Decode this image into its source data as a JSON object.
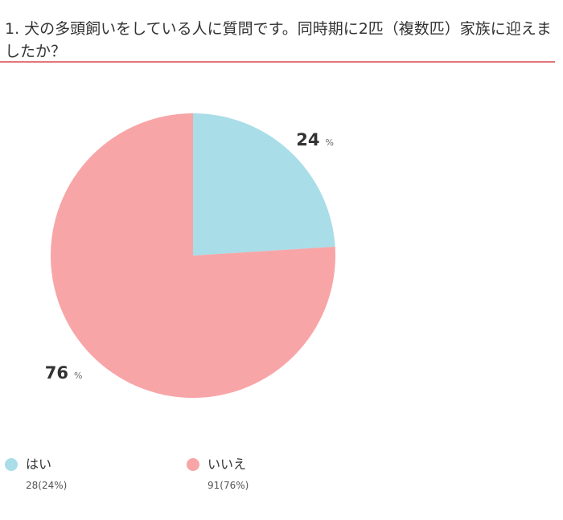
{
  "question": {
    "title": "1. 犬の多頭飼いをしている人に質問です。同時期に2匹（複数匹）家族に迎えましたか？"
  },
  "chart_data": {
    "type": "pie",
    "categories": [
      "はい",
      "いいえ"
    ],
    "values": [
      24,
      76
    ],
    "counts": [
      28,
      91
    ],
    "value_labels": [
      "24",
      "76"
    ],
    "unit": "%",
    "legend": [
      {
        "label": "はい",
        "count_text": "28(24%)",
        "color": "#a9dde8"
      },
      {
        "label": "いいえ",
        "count_text": "91(76%)",
        "color": "#f8a5a7"
      }
    ],
    "legend_position": "bottom"
  },
  "colors": {
    "accent_line": "#e0777b",
    "slice_yes": "#a9dde8",
    "slice_no": "#f8a5a7"
  }
}
